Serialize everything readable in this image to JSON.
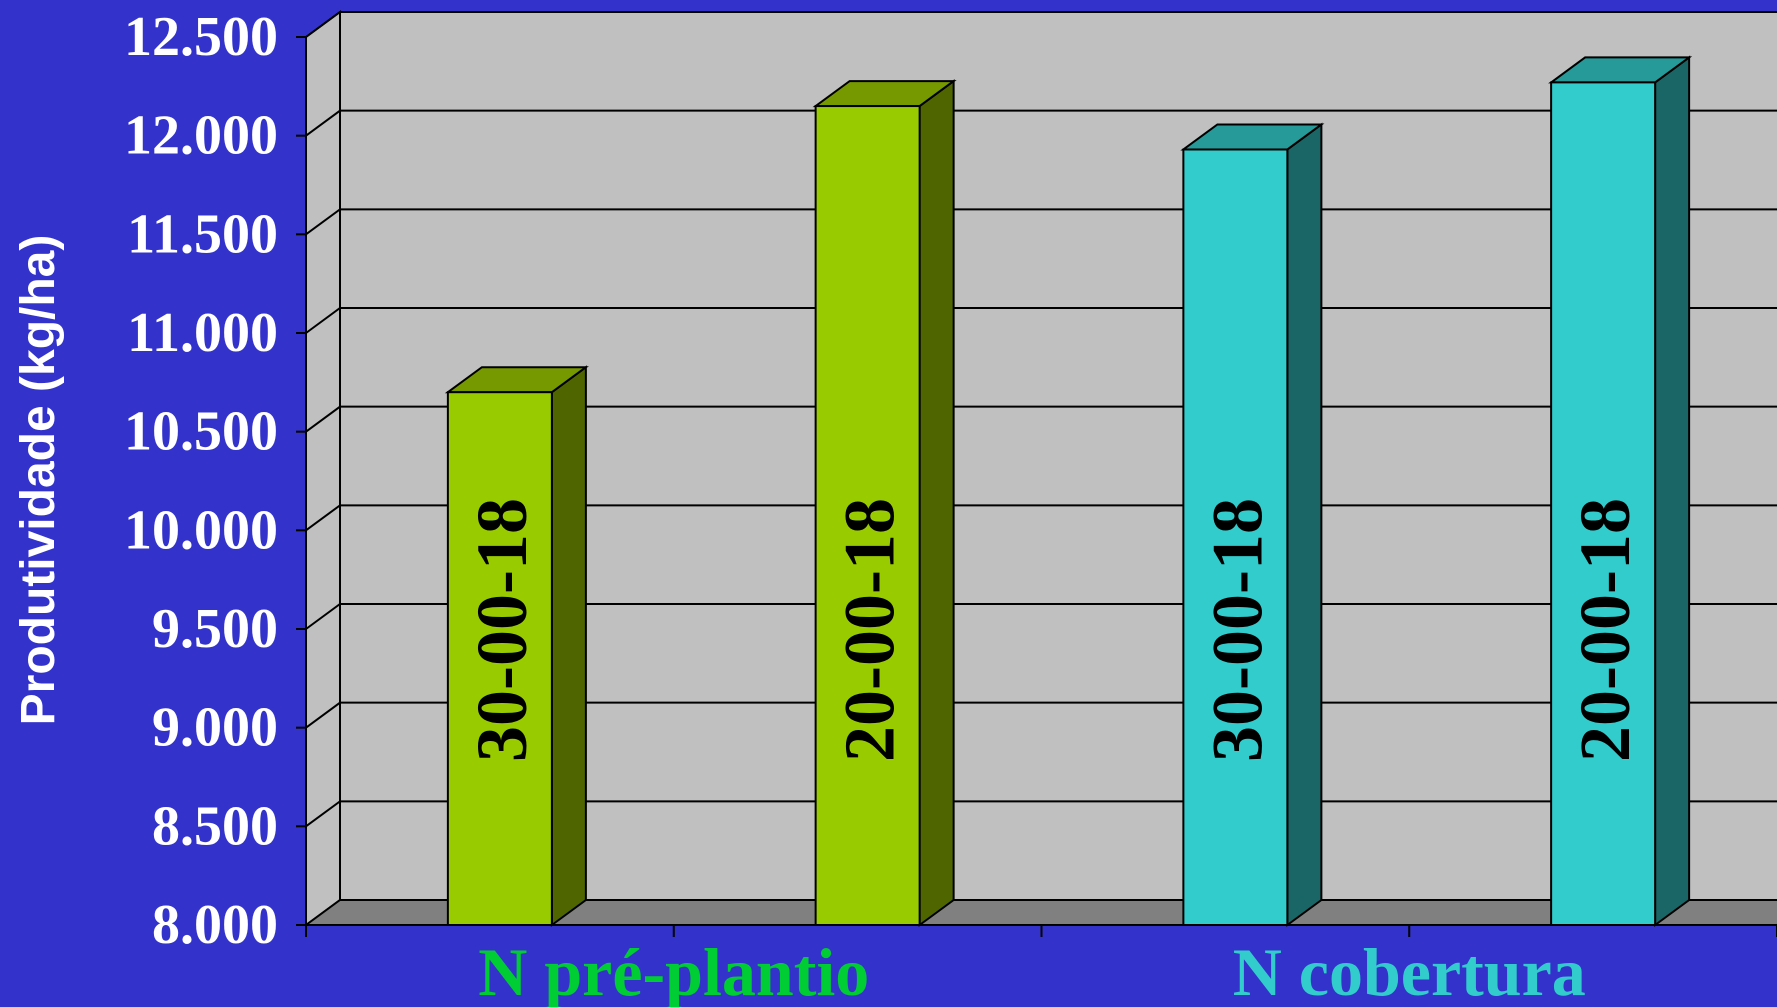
{
  "chart_data": {
    "type": "bar",
    "ylabel": "Produtividade (kg/ha)",
    "ylim": [
      8000,
      12500
    ],
    "yticks": [
      "8.000",
      "8.500",
      "9.000",
      "9.500",
      "10.000",
      "10.500",
      "11.000",
      "11.500",
      "12.000",
      "12.500"
    ],
    "ytick_values": [
      8000,
      8500,
      9000,
      9500,
      10000,
      10500,
      11000,
      11500,
      12000,
      12500
    ],
    "groups": [
      {
        "label": "N pré-plantio",
        "color": "#00cc33"
      },
      {
        "label": "N cobertura",
        "color": "#33cccc"
      }
    ],
    "bars": [
      {
        "label": "30-00-18",
        "value": 10700,
        "group": 0,
        "front": "#99cc00",
        "top": "#779900",
        "side": "#4f6600"
      },
      {
        "label": "20-00-18",
        "value": 12150,
        "group": 0,
        "front": "#99cc00",
        "top": "#779900",
        "side": "#4f6600"
      },
      {
        "label": "30-00-18",
        "value": 11930,
        "group": 1,
        "front": "#33cccc",
        "top": "#269999",
        "side": "#1a6666"
      },
      {
        "label": "20-00-18",
        "value": 12270,
        "group": 1,
        "front": "#33cccc",
        "top": "#269999",
        "side": "#1a6666"
      }
    ],
    "grid": true,
    "colors": {
      "background": "#3333cc",
      "wall": "#c0c0c0",
      "floor": "#808080",
      "text": "#ffffff"
    }
  }
}
